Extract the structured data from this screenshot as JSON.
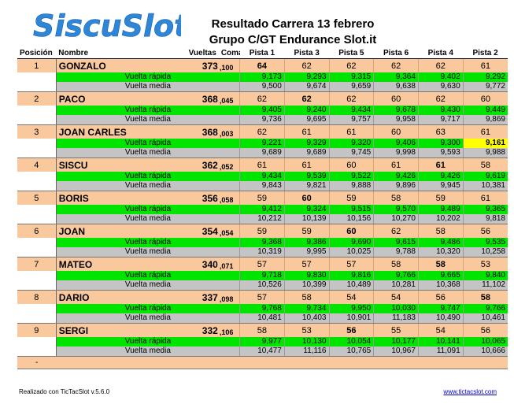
{
  "logo": {
    "text": "SiscuSlot",
    "color": "#2e86d8"
  },
  "title": "Resultado Carrera 13 febrero",
  "subtitle": "Grupo C/GT Endurance Slot.it",
  "headers": [
    "Posición",
    "Nombre",
    "Vueltas",
    "Coma",
    "Pista 1",
    "Pista 3",
    "Pista 5",
    "Pista 6",
    "Pista 4",
    "Pista 2"
  ],
  "row_labels": {
    "fast": "Vuelta rápida",
    "avg": "Vuelta media"
  },
  "colors": {
    "main_row": "#f9c99d",
    "fast_row": "#00e400",
    "avg_row": "#c4c4c4",
    "highlight": "#ffff00"
  },
  "rows": [
    {
      "pos": "1",
      "name": "GONZALO",
      "laps": "373",
      "coma": ",100",
      "tracks": [
        "64",
        "62",
        "62",
        "62",
        "62",
        "61"
      ],
      "best": [
        0
      ],
      "fast": [
        "9,173",
        "9,293",
        "9,315",
        "9,364",
        "9,402",
        "9,292"
      ],
      "avg": [
        "9,500",
        "9,674",
        "9,659",
        "9,638",
        "9,630",
        "9,772"
      ]
    },
    {
      "pos": "2",
      "name": "PACO",
      "laps": "368",
      "coma": ",045",
      "tracks": [
        "62",
        "62",
        "62",
        "60",
        "62",
        "60"
      ],
      "best": [
        1
      ],
      "fast": [
        "9,405",
        "9,240",
        "9,434",
        "9,678",
        "9,430",
        "9,449"
      ],
      "avg": [
        "9,736",
        "9,695",
        "9,757",
        "9,958",
        "9,717",
        "9,869"
      ]
    },
    {
      "pos": "3",
      "name": "JOAN CARLES",
      "laps": "368",
      "coma": ",003",
      "tracks": [
        "62",
        "61",
        "61",
        "60",
        "63",
        "61"
      ],
      "best": [],
      "fast": [
        "9,221",
        "9,329",
        "9,320",
        "9,406",
        "9,300",
        "9,161"
      ],
      "avg": [
        "9,689",
        "9,689",
        "9,745",
        "9,998",
        "9,593",
        "9,988"
      ],
      "highlight": [
        5
      ]
    },
    {
      "pos": "4",
      "name": "SISCU",
      "laps": "362",
      "coma": ",052",
      "tracks": [
        "61",
        "61",
        "60",
        "61",
        "61",
        "58"
      ],
      "best": [
        4
      ],
      "fast": [
        "9,434",
        "9,539",
        "9,522",
        "9,426",
        "9,426",
        "9,619"
      ],
      "avg": [
        "9,843",
        "9,821",
        "9,888",
        "9,896",
        "9,945",
        "10,381"
      ]
    },
    {
      "pos": "5",
      "name": "BORIS",
      "laps": "356",
      "coma": ",058",
      "tracks": [
        "59",
        "60",
        "59",
        "58",
        "59",
        "61"
      ],
      "best": [
        1
      ],
      "fast": [
        "9,412",
        "9,324",
        "9,515",
        "9,570",
        "9,489",
        "9,365"
      ],
      "avg": [
        "10,212",
        "10,139",
        "10,156",
        "10,270",
        "10,202",
        "9,818"
      ]
    },
    {
      "pos": "6",
      "name": "JOAN",
      "laps": "354",
      "coma": ",054",
      "tracks": [
        "59",
        "59",
        "60",
        "62",
        "58",
        "56"
      ],
      "best": [
        2
      ],
      "fast": [
        "9,368",
        "9,386",
        "9,690",
        "9,615",
        "9,486",
        "9,535"
      ],
      "avg": [
        "10,319",
        "9,995",
        "10,025",
        "9,788",
        "10,320",
        "10,258"
      ]
    },
    {
      "pos": "7",
      "name": "MATEO",
      "laps": "340",
      "coma": ",071",
      "tracks": [
        "57",
        "57",
        "57",
        "58",
        "58",
        "53"
      ],
      "best": [
        4
      ],
      "fast": [
        "9,718",
        "9,830",
        "9,816",
        "9,766",
        "9,665",
        "9,840"
      ],
      "avg": [
        "10,526",
        "10,399",
        "10,489",
        "10,281",
        "10,368",
        "11,102"
      ]
    },
    {
      "pos": "8",
      "name": "DARIO",
      "laps": "337",
      "coma": ",098",
      "tracks": [
        "57",
        "58",
        "54",
        "54",
        "56",
        "58"
      ],
      "best": [
        5
      ],
      "fast": [
        "9,768",
        "9,734",
        "9,950",
        "10,030",
        "9,747",
        "9,766"
      ],
      "avg": [
        "10,481",
        "10,403",
        "10,901",
        "11,183",
        "10,490",
        "10,461"
      ]
    },
    {
      "pos": "9",
      "name": "SERGI",
      "laps": "332",
      "coma": ",106",
      "tracks": [
        "58",
        "53",
        "56",
        "55",
        "54",
        "56"
      ],
      "best": [
        2
      ],
      "fast": [
        "9,977",
        "10,130",
        "10,054",
        "10,177",
        "10,141",
        "10,065"
      ],
      "avg": [
        "10,477",
        "11,116",
        "10,765",
        "10,967",
        "11,091",
        "10,666"
      ]
    }
  ],
  "empty_row_pos": "-",
  "footer_left": "Realizado con TicTacSlot v.5.6.0",
  "footer_right": "www.tictacslot.com"
}
